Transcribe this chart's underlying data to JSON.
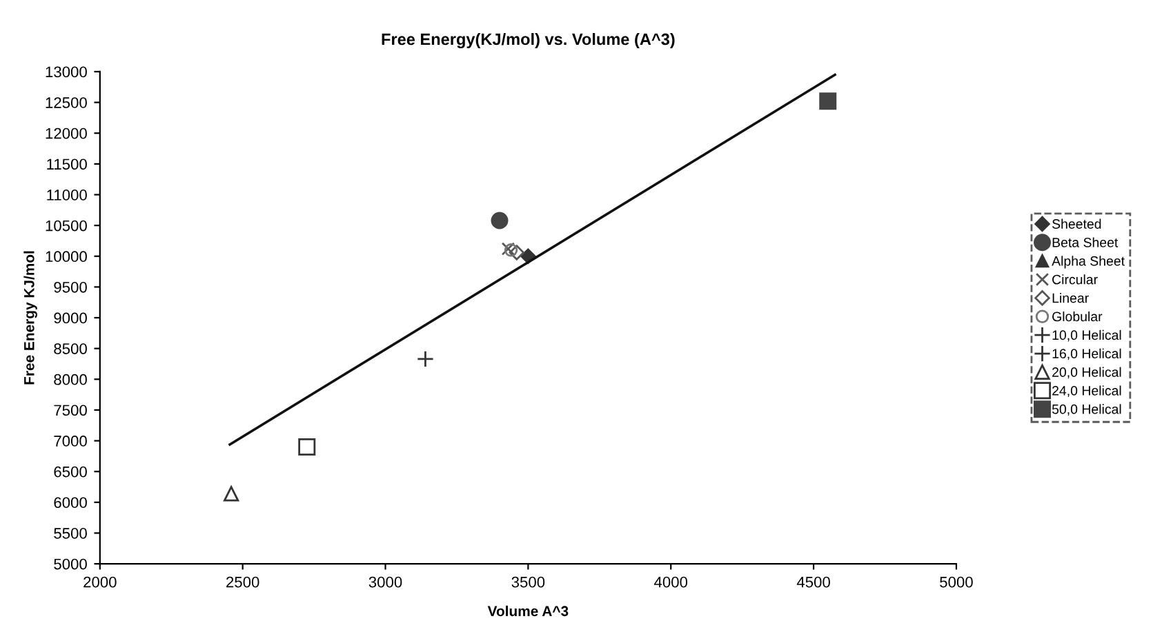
{
  "chart_data": {
    "type": "scatter",
    "title": "Free Energy(KJ/mol) vs. Volume (A^3)",
    "xlabel": "Volume A^3",
    "ylabel": "Free Energy KJ/mol",
    "xlim": [
      2000,
      5000
    ],
    "xticks": [
      2000,
      2500,
      3000,
      3500,
      4000,
      4500,
      5000
    ],
    "ylim": [
      5000,
      13000
    ],
    "yticks": [
      5000,
      5500,
      6000,
      6500,
      7000,
      7500,
      8000,
      8500,
      9000,
      9500,
      10000,
      10500,
      11000,
      11500,
      12000,
      12500,
      13000
    ],
    "grid": false,
    "legend": "right",
    "series": [
      {
        "name": "Sheeted",
        "color": "#333333",
        "marker": "diamond",
        "x": [
          3500
        ],
        "values": [
          10000
        ]
      },
      {
        "name": "Beta Sheet",
        "color": "#444444",
        "marker": "circle",
        "x": [
          3400
        ],
        "values": [
          10580
        ]
      },
      {
        "name": "Alpha Sheet",
        "color": "#333333",
        "marker": "triangle",
        "x": [
          null
        ],
        "values": [
          null
        ]
      },
      {
        "name": "Circular",
        "color": "#555555",
        "marker": "cross",
        "x": [
          3430
        ],
        "values": [
          10120
        ]
      },
      {
        "name": "Linear",
        "color": "#555555",
        "marker": "diamond-open",
        "x": [
          3460
        ],
        "values": [
          10060
        ]
      },
      {
        "name": "Globular",
        "color": "#777777",
        "marker": "circle-open",
        "x": [
          3440
        ],
        "values": [
          10100
        ]
      },
      {
        "name": "10,0 Helical",
        "color": "#333333",
        "marker": "plus",
        "x": [
          3140
        ],
        "values": [
          8330
        ]
      },
      {
        "name": "16,0 Helical",
        "color": "#333333",
        "marker": "plus",
        "x": [
          null
        ],
        "values": [
          null
        ]
      },
      {
        "name": "20,0 Helical",
        "color": "#333333",
        "marker": "triangle-open",
        "x": [
          2460
        ],
        "values": [
          6140
        ]
      },
      {
        "name": "24,0 Helical",
        "color": "#333333",
        "marker": "square-open",
        "x": [
          2725
        ],
        "values": [
          6900
        ]
      },
      {
        "name": "50,0 Helical",
        "color": "#444444",
        "marker": "square",
        "x": [
          4550
        ],
        "values": [
          12520
        ]
      },
      {
        "type": "line",
        "color": "#111111",
        "line_style": "solid",
        "marker": "none",
        "x": [
          2455,
          4575
        ],
        "values": [
          6940,
          12950
        ]
      }
    ]
  }
}
